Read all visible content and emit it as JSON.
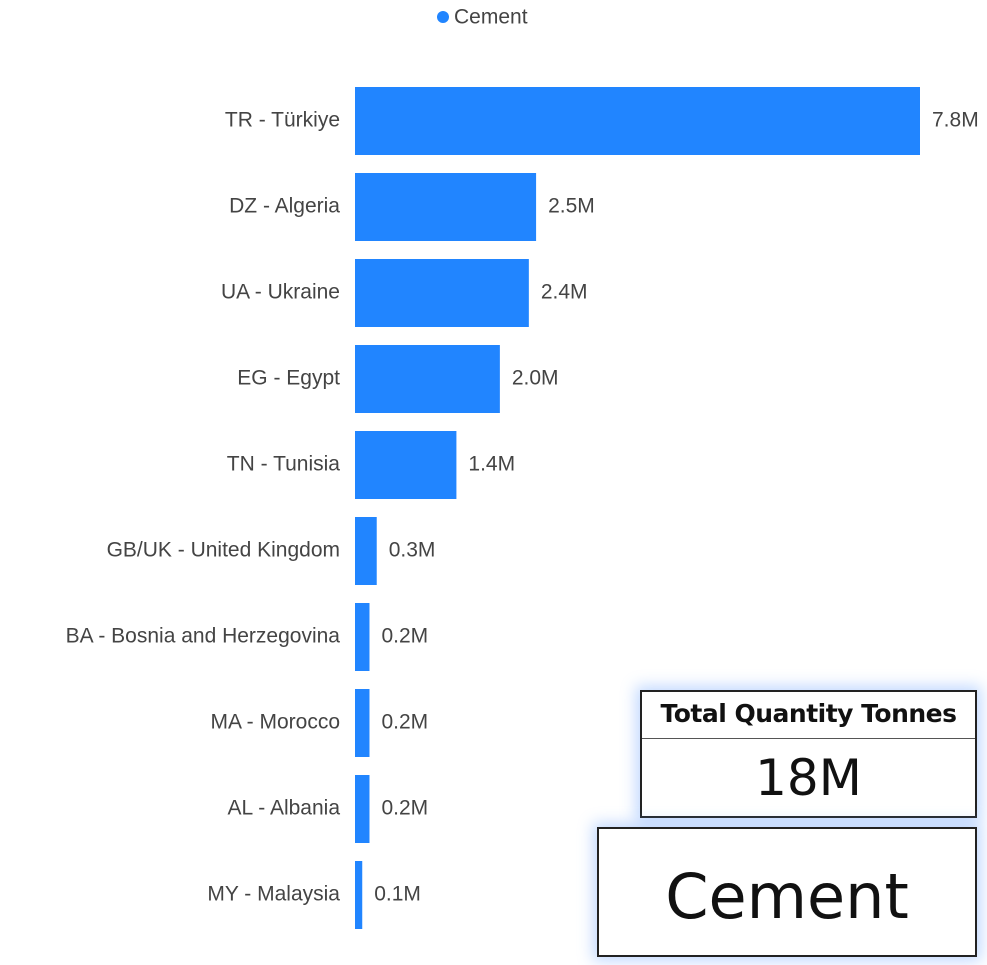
{
  "chart_data": {
    "type": "bar",
    "orientation": "horizontal",
    "categories": [
      "TR - Türkiye",
      "DZ - Algeria",
      "UA - Ukraine",
      "EG - Egypt",
      "TN - Tunisia",
      "GB/UK - United Kingdom",
      "BA - Bosnia and Herzegovina",
      "MA - Morocco",
      "AL - Albania",
      "MY - Malaysia"
    ],
    "series": [
      {
        "name": "Cement",
        "color": "#2185ff",
        "values": [
          7800000,
          2500000,
          2400000,
          2000000,
          1400000,
          300000,
          200000,
          200000,
          200000,
          100000
        ],
        "value_labels": [
          "7.8M",
          "2.5M",
          "2.4M",
          "2.0M",
          "1.4M",
          "0.3M",
          "0.2M",
          "0.2M",
          "0.2M",
          "0.1M"
        ]
      }
    ],
    "legend": "top"
  },
  "cards": [
    {
      "title": "Total Quantity Tonnes",
      "value": "18M"
    },
    {
      "value": "Cement"
    }
  ]
}
